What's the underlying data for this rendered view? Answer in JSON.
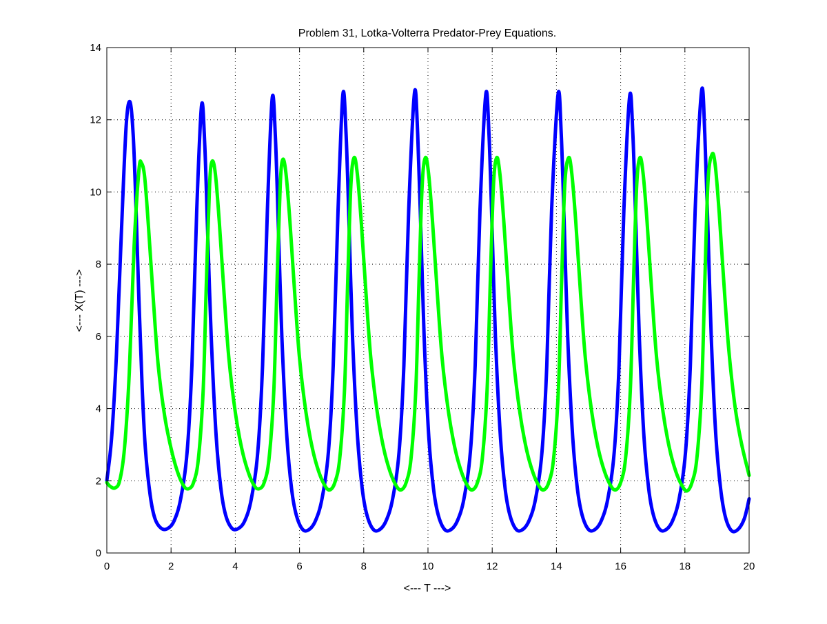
{
  "chart_data": {
    "type": "line",
    "title": "Problem 31, Lotka-Volterra Predator-Prey Equations.",
    "xlabel": "<--- T --->",
    "ylabel": "<--- X(T) --->",
    "xlim": [
      0,
      20
    ],
    "ylim": [
      0,
      14
    ],
    "xticks": [
      0,
      2,
      4,
      6,
      8,
      10,
      12,
      14,
      16,
      18,
      20
    ],
    "yticks": [
      0,
      2,
      4,
      6,
      8,
      10,
      12,
      14
    ],
    "grid": true,
    "grid_style": "dotted",
    "legend": "none",
    "series": [
      {
        "color": "#0000ff",
        "points": [
          [
            0.0,
            2.0
          ],
          [
            0.15,
            3.2
          ],
          [
            0.3,
            5.5
          ],
          [
            0.45,
            8.8
          ],
          [
            0.6,
            11.8
          ],
          [
            0.72,
            12.5
          ],
          [
            0.82,
            11.6
          ],
          [
            0.9,
            9.8
          ],
          [
            1.0,
            7.0
          ],
          [
            1.1,
            4.6
          ],
          [
            1.2,
            2.9
          ],
          [
            1.35,
            1.6
          ],
          [
            1.5,
            0.95
          ],
          [
            1.7,
            0.68
          ],
          [
            1.9,
            0.68
          ],
          [
            2.1,
            0.9
          ],
          [
            2.3,
            1.5
          ],
          [
            2.5,
            2.8
          ],
          [
            2.65,
            5.2
          ],
          [
            2.8,
            9.5
          ],
          [
            2.95,
            12.4
          ],
          [
            3.05,
            11.3
          ],
          [
            3.15,
            8.6
          ],
          [
            3.25,
            6.0
          ],
          [
            3.4,
            3.3
          ],
          [
            3.55,
            1.8
          ],
          [
            3.7,
            1.05
          ],
          [
            3.9,
            0.68
          ],
          [
            4.1,
            0.68
          ],
          [
            4.3,
            0.9
          ],
          [
            4.5,
            1.5
          ],
          [
            4.7,
            2.8
          ],
          [
            4.85,
            5.2
          ],
          [
            5.0,
            9.5
          ],
          [
            5.15,
            12.6
          ],
          [
            5.25,
            11.5
          ],
          [
            5.35,
            8.8
          ],
          [
            5.45,
            6.0
          ],
          [
            5.6,
            3.3
          ],
          [
            5.75,
            1.8
          ],
          [
            5.9,
            1.05
          ],
          [
            6.1,
            0.65
          ],
          [
            6.3,
            0.65
          ],
          [
            6.5,
            0.9
          ],
          [
            6.7,
            1.5
          ],
          [
            6.9,
            2.8
          ],
          [
            7.05,
            5.2
          ],
          [
            7.2,
            9.5
          ],
          [
            7.35,
            12.7
          ],
          [
            7.45,
            11.6
          ],
          [
            7.55,
            8.9
          ],
          [
            7.65,
            6.0
          ],
          [
            7.8,
            3.3
          ],
          [
            7.95,
            1.8
          ],
          [
            8.1,
            1.05
          ],
          [
            8.3,
            0.65
          ],
          [
            8.5,
            0.65
          ],
          [
            8.7,
            0.9
          ],
          [
            8.9,
            1.5
          ],
          [
            9.1,
            2.8
          ],
          [
            9.25,
            5.2
          ],
          [
            9.4,
            9.5
          ],
          [
            9.58,
            12.75
          ],
          [
            9.68,
            11.6
          ],
          [
            9.78,
            8.9
          ],
          [
            9.88,
            6.0
          ],
          [
            10.02,
            3.3
          ],
          [
            10.17,
            1.8
          ],
          [
            10.32,
            1.05
          ],
          [
            10.52,
            0.65
          ],
          [
            10.72,
            0.65
          ],
          [
            10.92,
            0.9
          ],
          [
            11.12,
            1.5
          ],
          [
            11.32,
            2.8
          ],
          [
            11.47,
            5.2
          ],
          [
            11.62,
            9.5
          ],
          [
            11.8,
            12.7
          ],
          [
            11.9,
            11.6
          ],
          [
            12.0,
            8.9
          ],
          [
            12.1,
            6.0
          ],
          [
            12.25,
            3.3
          ],
          [
            12.4,
            1.8
          ],
          [
            12.55,
            1.05
          ],
          [
            12.75,
            0.65
          ],
          [
            12.95,
            0.65
          ],
          [
            13.15,
            0.9
          ],
          [
            13.35,
            1.5
          ],
          [
            13.55,
            2.8
          ],
          [
            13.7,
            5.2
          ],
          [
            13.85,
            9.5
          ],
          [
            14.05,
            12.7
          ],
          [
            14.15,
            11.6
          ],
          [
            14.25,
            8.9
          ],
          [
            14.35,
            6.0
          ],
          [
            14.5,
            3.3
          ],
          [
            14.65,
            1.8
          ],
          [
            14.8,
            1.05
          ],
          [
            15.0,
            0.65
          ],
          [
            15.2,
            0.65
          ],
          [
            15.4,
            0.9
          ],
          [
            15.6,
            1.5
          ],
          [
            15.8,
            2.8
          ],
          [
            15.95,
            5.2
          ],
          [
            16.1,
            9.5
          ],
          [
            16.28,
            12.65
          ],
          [
            16.38,
            11.6
          ],
          [
            16.48,
            8.9
          ],
          [
            16.58,
            6.0
          ],
          [
            16.72,
            3.3
          ],
          [
            16.87,
            1.8
          ],
          [
            17.02,
            1.05
          ],
          [
            17.22,
            0.65
          ],
          [
            17.42,
            0.65
          ],
          [
            17.62,
            0.9
          ],
          [
            17.82,
            1.5
          ],
          [
            18.02,
            2.8
          ],
          [
            18.17,
            5.2
          ],
          [
            18.32,
            9.5
          ],
          [
            18.52,
            12.8
          ],
          [
            18.62,
            11.6
          ],
          [
            18.72,
            8.9
          ],
          [
            18.82,
            6.0
          ],
          [
            18.96,
            3.3
          ],
          [
            19.11,
            1.8
          ],
          [
            19.26,
            1.0
          ],
          [
            19.45,
            0.62
          ],
          [
            19.65,
            0.65
          ],
          [
            19.85,
            0.95
          ],
          [
            20.0,
            1.5
          ]
        ]
      },
      {
        "color": "#00ff00",
        "points": [
          [
            0.0,
            1.95
          ],
          [
            0.1,
            1.85
          ],
          [
            0.25,
            1.8
          ],
          [
            0.4,
            2.0
          ],
          [
            0.55,
            2.9
          ],
          [
            0.7,
            5.0
          ],
          [
            0.85,
            8.5
          ],
          [
            1.0,
            10.6
          ],
          [
            1.08,
            10.8
          ],
          [
            1.18,
            10.4
          ],
          [
            1.3,
            9.0
          ],
          [
            1.45,
            7.0
          ],
          [
            1.6,
            5.2
          ],
          [
            1.8,
            3.8
          ],
          [
            2.0,
            2.9
          ],
          [
            2.2,
            2.25
          ],
          [
            2.4,
            1.85
          ],
          [
            2.55,
            1.78
          ],
          [
            2.7,
            1.95
          ],
          [
            2.85,
            2.6
          ],
          [
            3.0,
            4.5
          ],
          [
            3.1,
            7.5
          ],
          [
            3.2,
            10.2
          ],
          [
            3.28,
            10.85
          ],
          [
            3.38,
            10.5
          ],
          [
            3.5,
            9.2
          ],
          [
            3.65,
            7.2
          ],
          [
            3.8,
            5.4
          ],
          [
            4.0,
            3.9
          ],
          [
            4.2,
            2.9
          ],
          [
            4.4,
            2.25
          ],
          [
            4.6,
            1.85
          ],
          [
            4.75,
            1.78
          ],
          [
            4.9,
            1.95
          ],
          [
            5.05,
            2.6
          ],
          [
            5.2,
            4.5
          ],
          [
            5.3,
            7.5
          ],
          [
            5.4,
            10.2
          ],
          [
            5.48,
            10.9
          ],
          [
            5.58,
            10.5
          ],
          [
            5.7,
            9.2
          ],
          [
            5.85,
            7.2
          ],
          [
            6.0,
            5.4
          ],
          [
            6.2,
            3.9
          ],
          [
            6.4,
            2.9
          ],
          [
            6.6,
            2.25
          ],
          [
            6.8,
            1.85
          ],
          [
            6.95,
            1.75
          ],
          [
            7.1,
            1.95
          ],
          [
            7.25,
            2.6
          ],
          [
            7.4,
            4.5
          ],
          [
            7.5,
            7.5
          ],
          [
            7.6,
            10.2
          ],
          [
            7.7,
            10.95
          ],
          [
            7.8,
            10.5
          ],
          [
            7.92,
            9.2
          ],
          [
            8.07,
            7.2
          ],
          [
            8.22,
            5.4
          ],
          [
            8.42,
            3.9
          ],
          [
            8.62,
            2.9
          ],
          [
            8.82,
            2.25
          ],
          [
            9.02,
            1.85
          ],
          [
            9.17,
            1.75
          ],
          [
            9.32,
            1.95
          ],
          [
            9.47,
            2.6
          ],
          [
            9.62,
            4.5
          ],
          [
            9.72,
            7.5
          ],
          [
            9.82,
            10.2
          ],
          [
            9.92,
            10.95
          ],
          [
            10.02,
            10.5
          ],
          [
            10.14,
            9.2
          ],
          [
            10.29,
            7.2
          ],
          [
            10.44,
            5.4
          ],
          [
            10.64,
            3.9
          ],
          [
            10.84,
            2.9
          ],
          [
            11.04,
            2.25
          ],
          [
            11.24,
            1.85
          ],
          [
            11.39,
            1.75
          ],
          [
            11.54,
            1.95
          ],
          [
            11.69,
            2.6
          ],
          [
            11.84,
            4.5
          ],
          [
            11.94,
            7.5
          ],
          [
            12.04,
            10.2
          ],
          [
            12.14,
            10.95
          ],
          [
            12.24,
            10.5
          ],
          [
            12.36,
            9.2
          ],
          [
            12.51,
            7.2
          ],
          [
            12.66,
            5.4
          ],
          [
            12.86,
            3.9
          ],
          [
            13.06,
            2.9
          ],
          [
            13.26,
            2.25
          ],
          [
            13.46,
            1.85
          ],
          [
            13.61,
            1.75
          ],
          [
            13.76,
            1.95
          ],
          [
            13.91,
            2.6
          ],
          [
            14.06,
            4.5
          ],
          [
            14.16,
            7.5
          ],
          [
            14.26,
            10.2
          ],
          [
            14.38,
            10.95
          ],
          [
            14.48,
            10.5
          ],
          [
            14.6,
            9.2
          ],
          [
            14.75,
            7.2
          ],
          [
            14.9,
            5.4
          ],
          [
            15.1,
            3.9
          ],
          [
            15.3,
            2.9
          ],
          [
            15.5,
            2.25
          ],
          [
            15.7,
            1.85
          ],
          [
            15.85,
            1.75
          ],
          [
            16.0,
            1.95
          ],
          [
            16.15,
            2.6
          ],
          [
            16.3,
            4.5
          ],
          [
            16.4,
            7.5
          ],
          [
            16.5,
            10.2
          ],
          [
            16.6,
            10.95
          ],
          [
            16.7,
            10.5
          ],
          [
            16.82,
            9.2
          ],
          [
            16.97,
            7.2
          ],
          [
            17.12,
            5.4
          ],
          [
            17.32,
            3.9
          ],
          [
            17.52,
            2.9
          ],
          [
            17.72,
            2.25
          ],
          [
            17.92,
            1.85
          ],
          [
            18.07,
            1.72
          ],
          [
            18.22,
            1.95
          ],
          [
            18.37,
            2.6
          ],
          [
            18.52,
            4.5
          ],
          [
            18.62,
            7.5
          ],
          [
            18.72,
            10.3
          ],
          [
            18.85,
            11.05
          ],
          [
            18.95,
            10.7
          ],
          [
            19.07,
            9.4
          ],
          [
            19.22,
            7.4
          ],
          [
            19.37,
            5.6
          ],
          [
            19.57,
            4.0
          ],
          [
            19.77,
            3.0
          ],
          [
            20.0,
            2.15
          ]
        ]
      }
    ]
  }
}
